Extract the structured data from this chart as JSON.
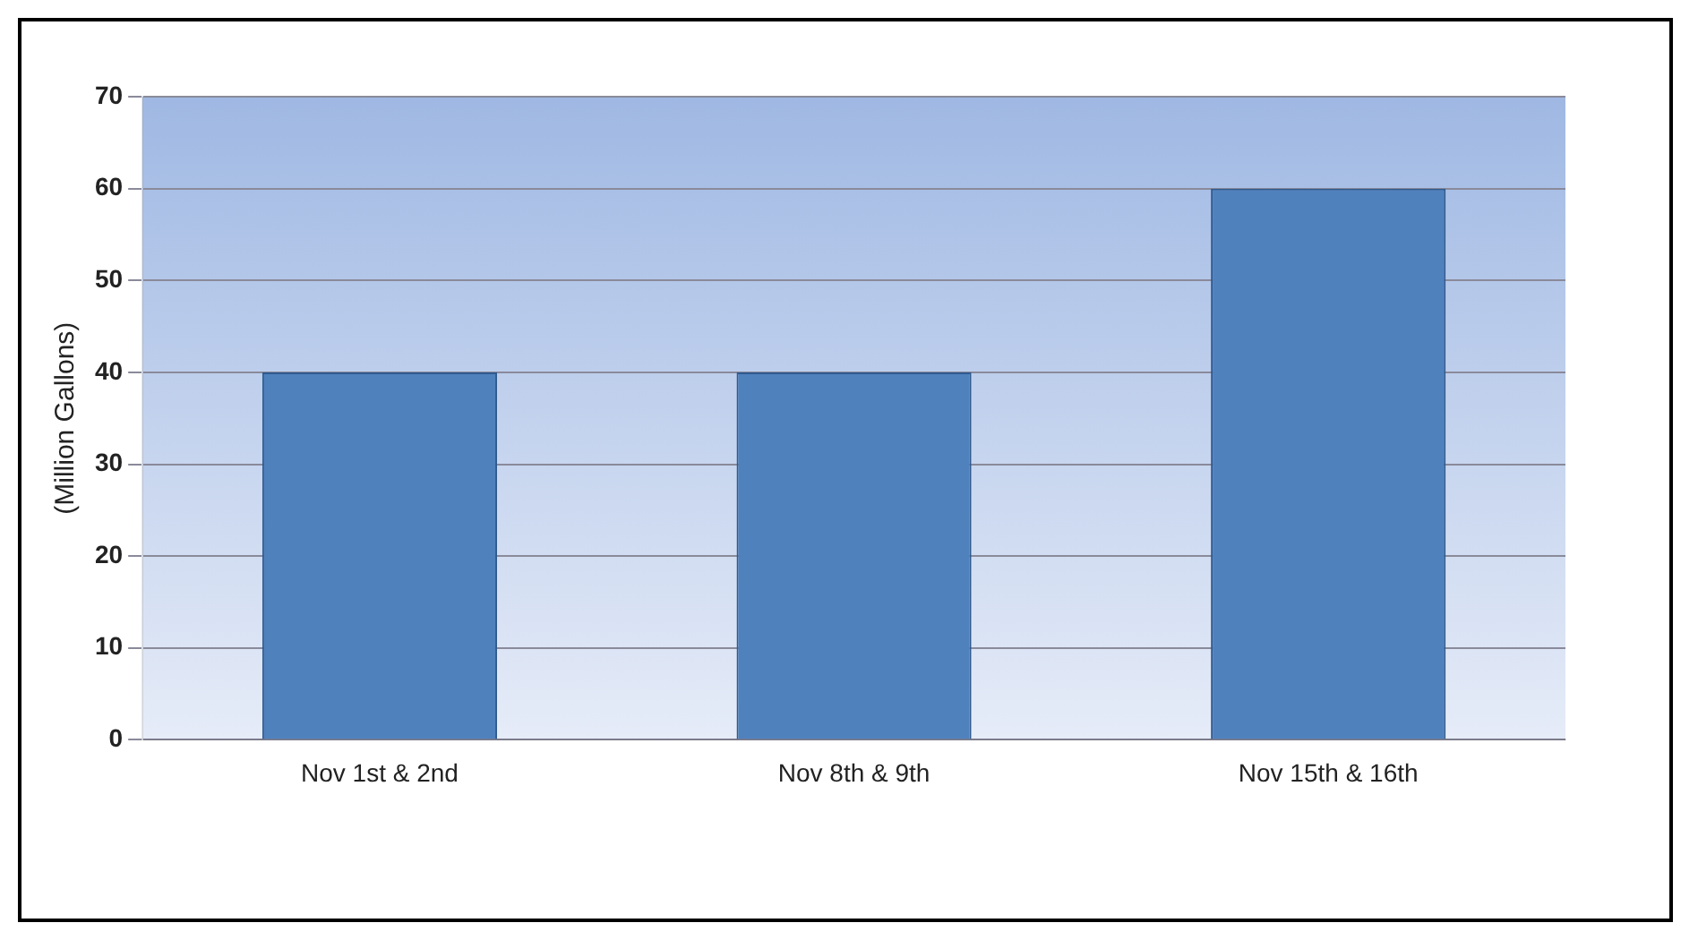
{
  "chart_data": {
    "type": "bar",
    "ylabel": "(Million Gallons)",
    "categories": [
      "Nov 1st & 2nd",
      "Nov 8th & 9th",
      "Nov 15th & 16th"
    ],
    "values": [
      40,
      40,
      60
    ],
    "color": "#4f81bd",
    "ylim": [
      0,
      70
    ],
    "yticks": [
      0,
      10,
      20,
      30,
      40,
      50,
      60,
      70
    ],
    "grid": "y",
    "legend": false
  }
}
